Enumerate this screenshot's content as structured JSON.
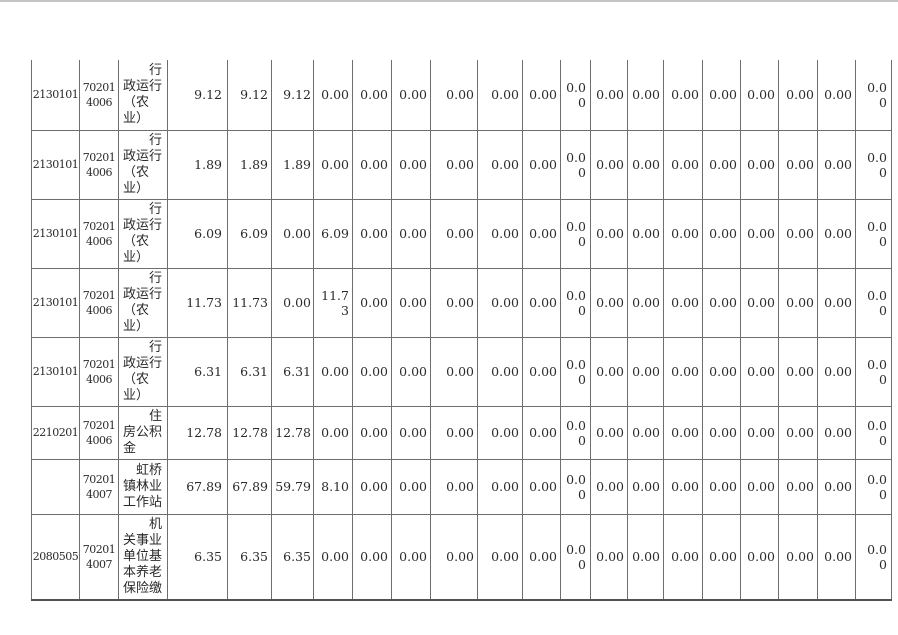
{
  "colors": {
    "background": "#ffffff",
    "table_border": "#6e6e6e",
    "text": "#2a2a2a",
    "top_rule": "#c4c4c4"
  },
  "table": {
    "rows": [
      {
        "func_code": "2130101",
        "unit_code": "70201 4006",
        "name": "　　行政运行（农业）",
        "values": [
          "9.12",
          "9.12",
          "9.12",
          "0.00",
          "0.00",
          "0.00",
          "0.00",
          "0.00",
          "0.00",
          "0.00",
          "0.00",
          "0.00",
          "0.00",
          "0.00",
          "0.00",
          "0.00",
          "0.00",
          "0.00"
        ]
      },
      {
        "func_code": "2130101",
        "unit_code": "70201 4006",
        "name": "　　行政运行（农业）",
        "values": [
          "1.89",
          "1.89",
          "1.89",
          "0.00",
          "0.00",
          "0.00",
          "0.00",
          "0.00",
          "0.00",
          "0.00",
          "0.00",
          "0.00",
          "0.00",
          "0.00",
          "0.00",
          "0.00",
          "0.00",
          "0.00"
        ]
      },
      {
        "func_code": "2130101",
        "unit_code": "70201 4006",
        "name": "　　行政运行（农业）",
        "values": [
          "6.09",
          "6.09",
          "0.00",
          "6.09",
          "0.00",
          "0.00",
          "0.00",
          "0.00",
          "0.00",
          "0.00",
          "0.00",
          "0.00",
          "0.00",
          "0.00",
          "0.00",
          "0.00",
          "0.00",
          "0.00"
        ]
      },
      {
        "func_code": "2130101",
        "unit_code": "70201 4006",
        "name": "　　行政运行（农业）",
        "values": [
          "11.73",
          "11.73",
          "0.00",
          "11.73",
          "0.00",
          "0.00",
          "0.00",
          "0.00",
          "0.00",
          "0.00",
          "0.00",
          "0.00",
          "0.00",
          "0.00",
          "0.00",
          "0.00",
          "0.00",
          "0.00"
        ]
      },
      {
        "func_code": "2130101",
        "unit_code": "70201 4006",
        "name": "　　行政运行（农业）",
        "values": [
          "6.31",
          "6.31",
          "6.31",
          "0.00",
          "0.00",
          "0.00",
          "0.00",
          "0.00",
          "0.00",
          "0.00",
          "0.00",
          "0.00",
          "0.00",
          "0.00",
          "0.00",
          "0.00",
          "0.00",
          "0.00"
        ]
      },
      {
        "func_code": "2210201",
        "unit_code": "70201 4006",
        "name": "　　住房公积金",
        "values": [
          "12.78",
          "12.78",
          "12.78",
          "0.00",
          "0.00",
          "0.00",
          "0.00",
          "0.00",
          "0.00",
          "0.00",
          "0.00",
          "0.00",
          "0.00",
          "0.00",
          "0.00",
          "0.00",
          "0.00",
          "0.00"
        ]
      },
      {
        "func_code": "",
        "unit_code": "70201 4007",
        "name": "　虹桥镇林业工作站",
        "values": [
          "67.89",
          "67.89",
          "59.79",
          "8.10",
          "0.00",
          "0.00",
          "0.00",
          "0.00",
          "0.00",
          "0.00",
          "0.00",
          "0.00",
          "0.00",
          "0.00",
          "0.00",
          "0.00",
          "0.00",
          "0.00"
        ]
      },
      {
        "func_code": "2080505",
        "unit_code": "70201 4007",
        "name": "　　机关事业单位基本养老保险缴",
        "values": [
          "6.35",
          "6.35",
          "6.35",
          "0.00",
          "0.00",
          "0.00",
          "0.00",
          "0.00",
          "0.00",
          "0.00",
          "0.00",
          "0.00",
          "0.00",
          "0.00",
          "0.00",
          "0.00",
          "0.00",
          "0.00"
        ]
      }
    ]
  }
}
